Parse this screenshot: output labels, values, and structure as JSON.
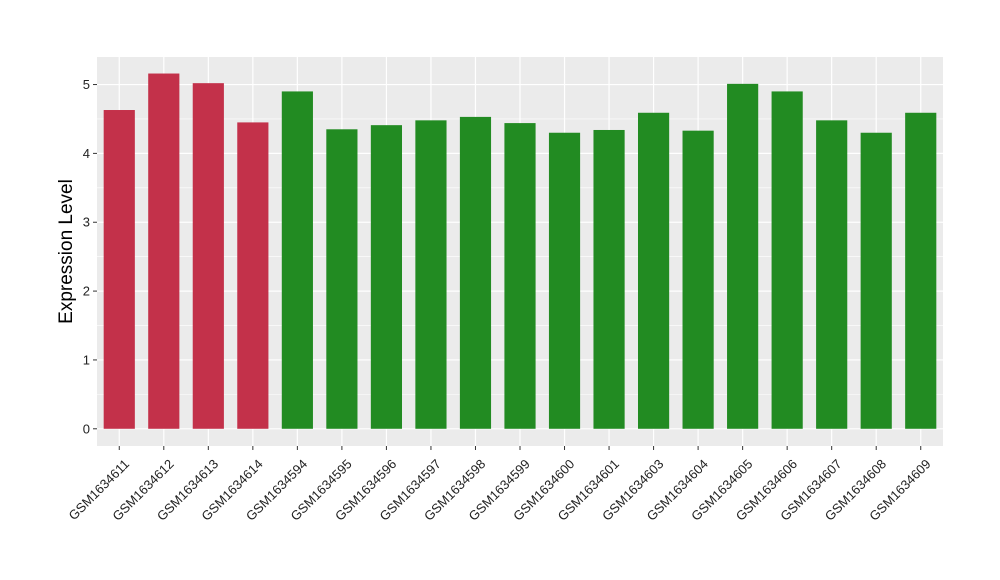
{
  "chart_data": {
    "type": "bar",
    "title": "",
    "xlabel": "",
    "ylabel": "Expression Level",
    "ylim": [
      -0.25,
      5.4
    ],
    "yticks": [
      0,
      1,
      2,
      3,
      4,
      5
    ],
    "grid": true,
    "legend": "none",
    "colors": {
      "group_a": "#C3314A",
      "group_b": "#228B22",
      "panel": "#EBEBEB",
      "grid": "#FFFFFF"
    },
    "categories": [
      "GSM1634611",
      "GSM1634612",
      "GSM1634613",
      "GSM1634614",
      "GSM1634594",
      "GSM1634595",
      "GSM1634596",
      "GSM1634597",
      "GSM1634598",
      "GSM1634599",
      "GSM1634600",
      "GSM1634601",
      "GSM1634603",
      "GSM1634604",
      "GSM1634605",
      "GSM1634606",
      "GSM1634607",
      "GSM1634608",
      "GSM1634609"
    ],
    "values": [
      4.63,
      5.16,
      5.02,
      4.45,
      4.9,
      4.35,
      4.41,
      4.48,
      4.53,
      4.44,
      4.3,
      4.34,
      4.59,
      4.33,
      5.01,
      4.9,
      4.48,
      4.3,
      4.59
    ],
    "groups": [
      "a",
      "a",
      "a",
      "a",
      "b",
      "b",
      "b",
      "b",
      "b",
      "b",
      "b",
      "b",
      "b",
      "b",
      "b",
      "b",
      "b",
      "b",
      "b"
    ]
  }
}
